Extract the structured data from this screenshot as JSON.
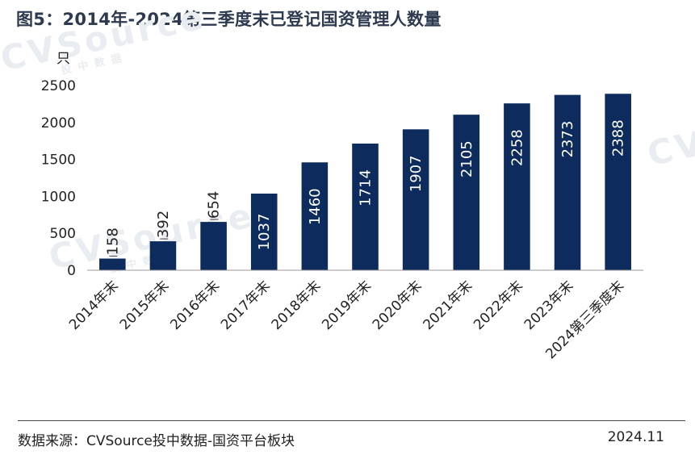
{
  "title": "图5：2014年-2024第三季度末已登记国资管理人数量",
  "unit_label": "只",
  "watermark": {
    "brand": "CVSource",
    "sub": "投中数据"
  },
  "footer": {
    "source": "数据来源：CVSource投中数据-国资平台板块",
    "date": "2024.11"
  },
  "colors": {
    "bar": "#0d2b5c",
    "label_inside": "#ffffff",
    "label_outside": "#222222",
    "axis": "#999999"
  },
  "chart_data": {
    "type": "bar",
    "categories": [
      "2014年末",
      "2015年末",
      "2016年末",
      "2017年末",
      "2018年末",
      "2019年末",
      "2020年末",
      "2021年末",
      "2022年末",
      "2023年末",
      "2024第三季度末"
    ],
    "values": [
      158,
      392,
      654,
      1037,
      1460,
      1714,
      1907,
      2105,
      2258,
      2373,
      2388
    ],
    "ylim": [
      0,
      2500
    ],
    "yticks": [
      0,
      500,
      1000,
      1500,
      2000,
      2500
    ],
    "xlabel": "",
    "ylabel": "只",
    "grid": false,
    "legend": "none"
  }
}
